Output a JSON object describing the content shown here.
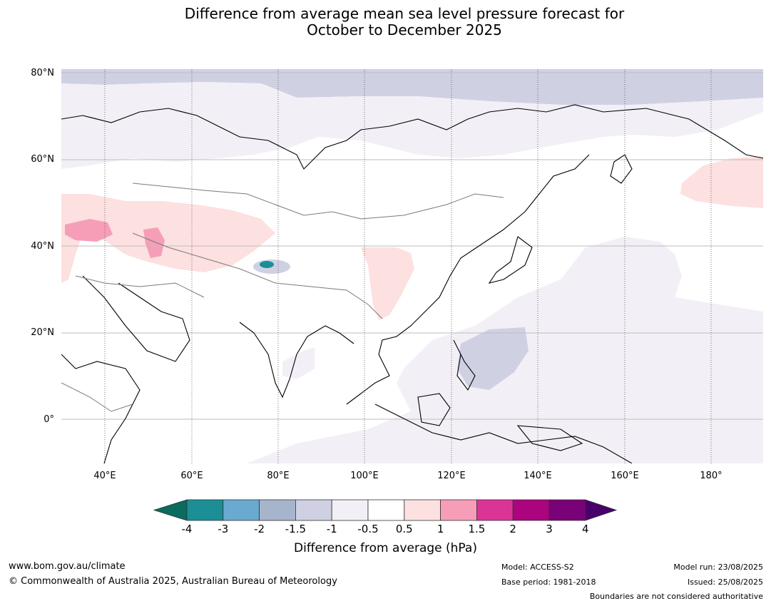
{
  "title_line1": "Difference from average mean sea level pressure forecast for",
  "title_line2": "October to December 2025",
  "lat_labels": [
    "80°N",
    "60°N",
    "40°N",
    "20°N",
    "0°"
  ],
  "lon_labels": [
    "40°E",
    "60°E",
    "80°E",
    "100°E",
    "120°E",
    "140°E",
    "160°E",
    "180°"
  ],
  "colorbar": {
    "ticks": [
      "-4",
      "-3",
      "-2",
      "-1.5",
      "-1",
      "-0.5",
      "0.5",
      "1",
      "1.5",
      "2",
      "3",
      "4"
    ],
    "colors": [
      "#1b8e96",
      "#6aa9d0",
      "#a7b5cc",
      "#cfd1e3",
      "#f3eff6",
      "#ffffff",
      "#fde0e0",
      "#f69eb8",
      "#db3497",
      "#ac037f",
      "#7a0177"
    ],
    "under_color": "#0a6b5f",
    "over_color": "#49006a",
    "label": "Difference from average (hPa)"
  },
  "footer": {
    "website": "www.bom.gov.au/climate",
    "copyright": "© Commonwealth of Australia 2025, Australian Bureau of Meteorology",
    "model": "Model: ACCESS-S2",
    "base_period": "Base period: 1981-2018",
    "model_run": "Model run: 23/08/2025",
    "issued": "Issued: 25/08/2025",
    "disclaimer": "Boundaries are not considered authoritative"
  }
}
